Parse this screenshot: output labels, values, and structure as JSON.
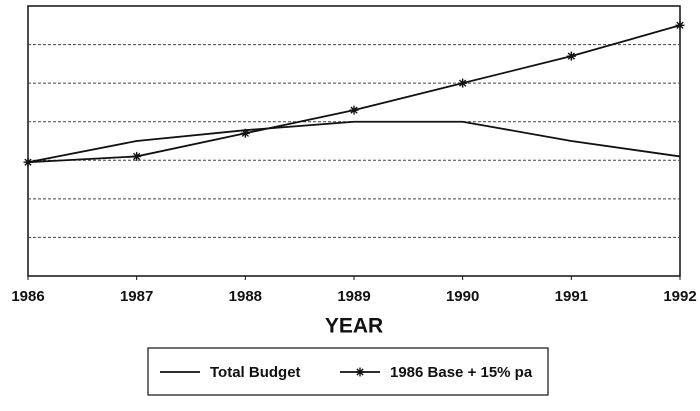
{
  "chart_data": {
    "type": "line",
    "x_label": "YEAR",
    "x": [
      1986,
      1987,
      1988,
      1989,
      1990,
      1991,
      1992
    ],
    "xlim": [
      1986,
      1992
    ],
    "xticks": [
      1986,
      1987,
      1988,
      1989,
      1990,
      1991,
      1992
    ],
    "ylim": [
      0,
      7
    ],
    "yticks": [
      1,
      2,
      3,
      4,
      5,
      6
    ],
    "grid": true,
    "legend": "bottom",
    "series": [
      {
        "name": "Total Budget",
        "color": "#111111",
        "marker": "none",
        "values": [
          2.95,
          3.5,
          3.78,
          4.0,
          4.0,
          3.5,
          3.1
        ]
      },
      {
        "name": "1986 Base + 15% pa",
        "color": "#111111",
        "marker": "star",
        "values": [
          2.95,
          3.1,
          3.7,
          4.3,
          5.0,
          5.7,
          6.5
        ]
      }
    ]
  }
}
